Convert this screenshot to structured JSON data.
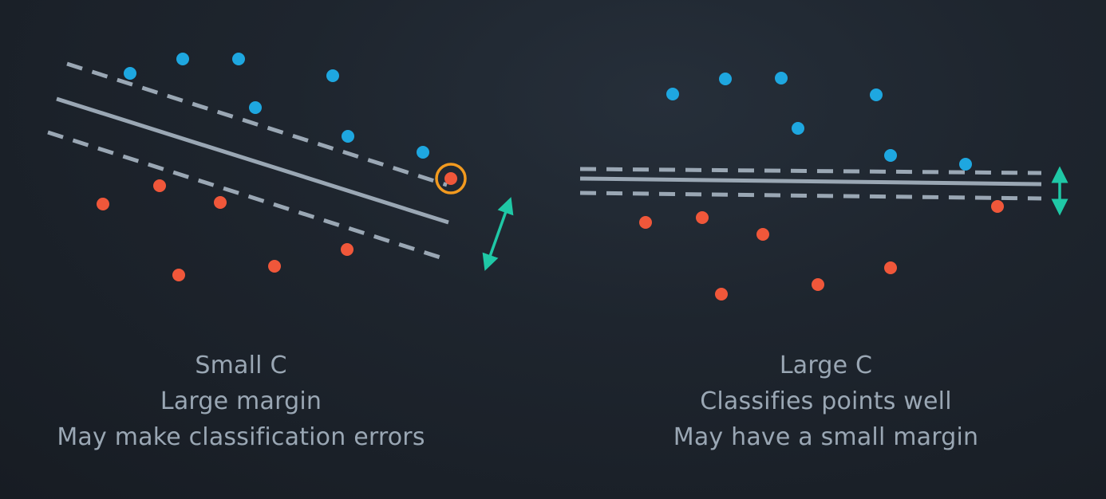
{
  "colors": {
    "background": "#1b2129",
    "class_a_point": "#1ea7e0",
    "class_b_point": "#f0573a",
    "boundary_line": "#9aa7b4",
    "margin_arrow": "#1fc8a6",
    "error_highlight": "#f29a1f",
    "caption_text": "#9aa7b4"
  },
  "panels": [
    {
      "id": "small-c",
      "caption": {
        "title": "Small C",
        "line1": "Large margin",
        "line2": "May make classification errors"
      },
      "has_error_highlight": true
    },
    {
      "id": "large-c",
      "caption": {
        "title": "Large C",
        "line1": "Classifies points well",
        "line2": "May have a small margin"
      },
      "has_error_highlight": false
    }
  ]
}
